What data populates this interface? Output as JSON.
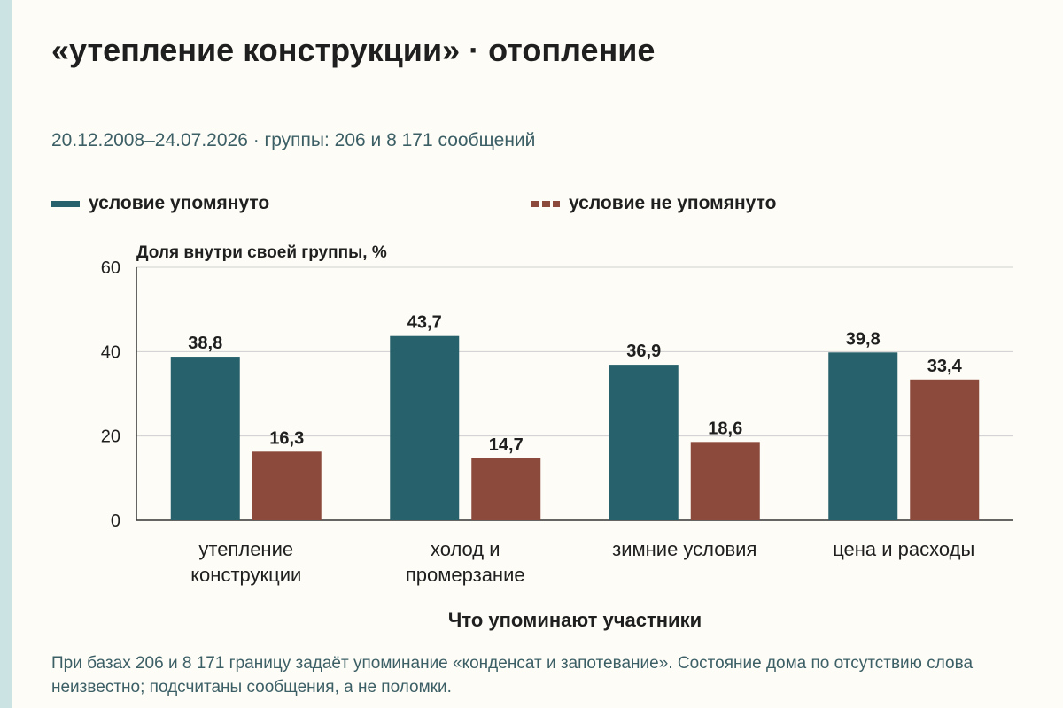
{
  "title": "«утепление конструкции» · отопление",
  "subtitle": "20.12.2008–24.07.2026 · группы: 206 и 8 171 сообщений",
  "note": "При базах 206 и 8 171 границу задаёт упоминание «конденсат и запотевание». Состояние дома по отсутствию слова неизвестно; подсчитаны сообщения, а не поломки.",
  "colors": {
    "mentioned": "#27626c",
    "not_mentioned": "#8c4a3c",
    "accent_bar": "#cbe3e2"
  },
  "chart_data": {
    "type": "bar",
    "ylabel": "Доля внутри своей группы, %",
    "xlabel": "Что упоминают участники",
    "ylim": [
      0,
      60
    ],
    "yticks": [
      0,
      20,
      40,
      60
    ],
    "grid": true,
    "legend_position": "top",
    "categories": [
      [
        "утепление",
        "конструкции"
      ],
      [
        "холод и",
        "промерзание"
      ],
      [
        "зимние условия"
      ],
      [
        "цена и расходы"
      ]
    ],
    "series": [
      {
        "name": "условие упомянуто",
        "values": [
          38.8,
          43.7,
          36.9,
          39.8
        ],
        "labels": [
          "38,8",
          "43,7",
          "36,9",
          "39,8"
        ]
      },
      {
        "name": "условие не упомянуто",
        "values": [
          16.3,
          14.7,
          18.6,
          33.4
        ],
        "labels": [
          "16,3",
          "14,7",
          "18,6",
          "33,4"
        ]
      }
    ]
  }
}
